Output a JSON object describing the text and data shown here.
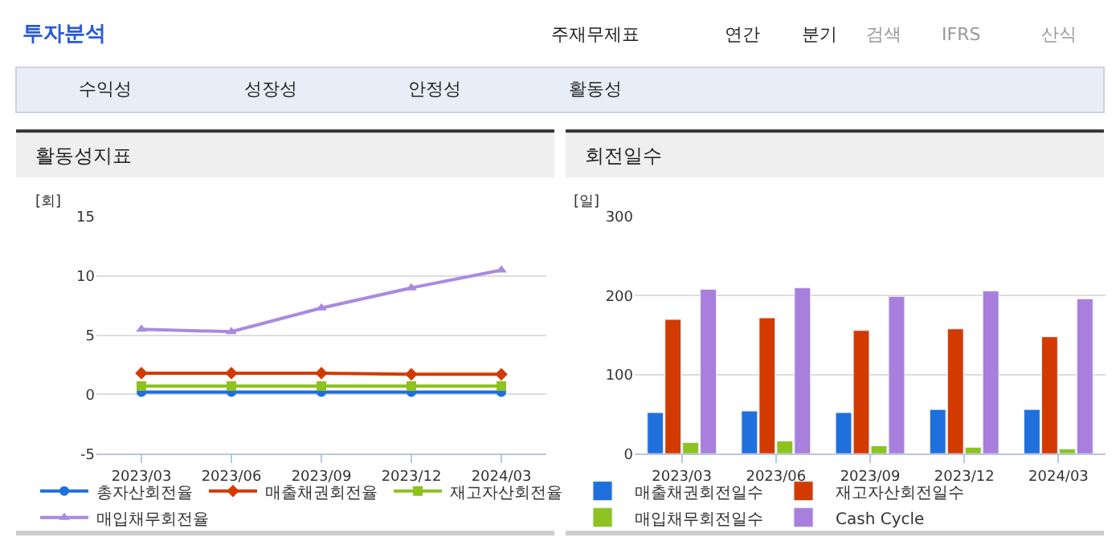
{
  "chart_data": [
    {
      "type": "other",
      "title": "투자분석",
      "annotations": [
        "주재무제표",
        "연간",
        "분기",
        "검색",
        "IFRS",
        "산식",
        "수익성",
        "성장성",
        "안정성",
        "활동성"
      ]
    },
    {
      "type": "line",
      "title": "활동성지표",
      "ylabel": "[회]",
      "categories": [
        "2023/03",
        "2023/06",
        "2023/09",
        "2023/12",
        "2024/03"
      ],
      "series": [
        {
          "name": "총자산회전율",
          "color": "#1f6fdc",
          "marker": "circle",
          "values": [
            0.2,
            0.2,
            0.2,
            0.2,
            0.2
          ]
        },
        {
          "name": "매출채권회전율",
          "color": "#d33a00",
          "marker": "diamond",
          "values": [
            1.8,
            1.8,
            1.8,
            1.7,
            1.7
          ]
        },
        {
          "name": "재고자산회전율",
          "color": "#8dc21f",
          "marker": "square",
          "values": [
            0.7,
            0.7,
            0.7,
            0.7,
            0.7
          ]
        },
        {
          "name": "매입채무회전율",
          "color": "#a98ae0",
          "marker": "triangle",
          "values": [
            5.5,
            5.3,
            7.3,
            9.0,
            10.5
          ]
        }
      ],
      "ylim": [
        -5,
        15
      ],
      "yticks": [
        -5,
        0,
        5,
        10,
        15
      ],
      "grid": "y",
      "legend": "bottom",
      "line_style": "solid"
    },
    {
      "type": "bar",
      "title": "회전일수",
      "ylabel": "[일]",
      "categories": [
        "2023/03",
        "2023/06",
        "2023/09",
        "2023/12",
        "2024/03"
      ],
      "series": [
        {
          "name": "매출채권회전일수",
          "color": "#1f6fdc",
          "values": [
            52,
            54,
            52,
            56,
            56
          ]
        },
        {
          "name": "재고자산회전일수",
          "color": "#d33a00",
          "values": [
            170,
            172,
            156,
            158,
            148
          ]
        },
        {
          "name": "매입채무회전일수",
          "color": "#8dc21f",
          "values": [
            14,
            16,
            10,
            8,
            6
          ]
        },
        {
          "name": "Cash Cycle",
          "color": "#a87fdc",
          "values": [
            208,
            210,
            199,
            206,
            196
          ]
        }
      ],
      "ylim": [
        0,
        300
      ],
      "yticks": [
        0,
        100,
        200,
        300
      ],
      "grid": "y",
      "legend": "bottom"
    }
  ]
}
